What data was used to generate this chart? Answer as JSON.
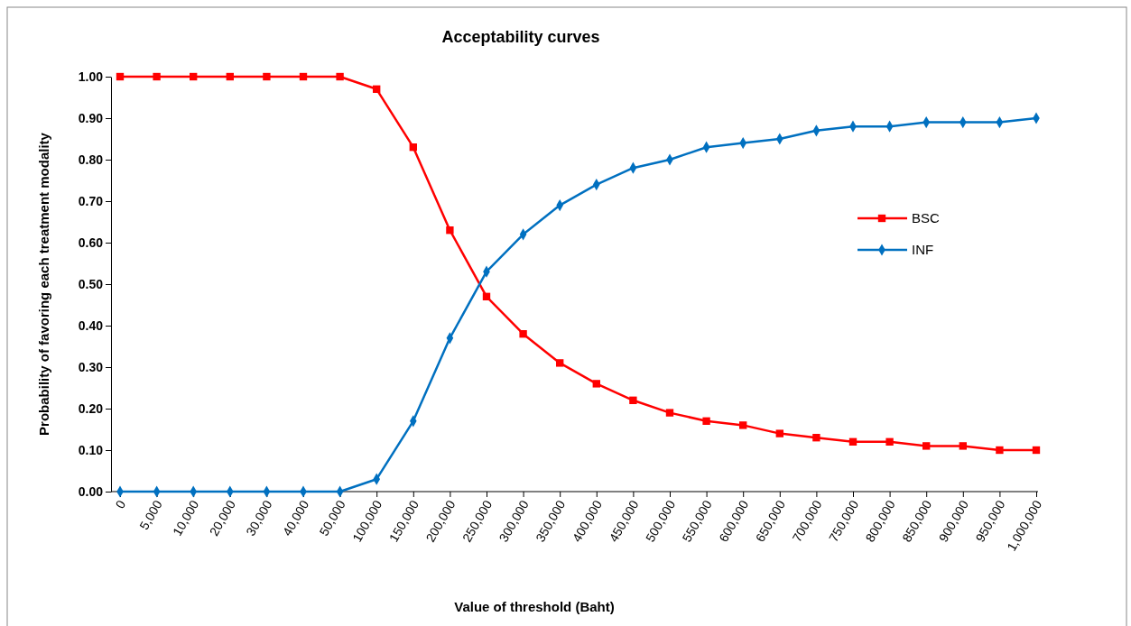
{
  "chart_data": {
    "type": "line",
    "title": "Acceptability curves",
    "xlabel": "Value of  threshold (Baht)",
    "ylabel": "Probability of favoring each treatment modality",
    "categories": [
      "0",
      "5,000",
      "10,000",
      "20,000",
      "30,000",
      "40,000",
      "50,000",
      "100,000",
      "150,000",
      "200,000",
      "250,000",
      "300,000",
      "350,000",
      "400,000",
      "450,000",
      "500,000",
      "550,000",
      "600,000",
      "650,000",
      "700,000",
      "750,000",
      "800,000",
      "850,000",
      "900,000",
      "950,000",
      "1,000,000"
    ],
    "series": [
      {
        "name": "BSC",
        "color": "#ff0000",
        "marker": "square",
        "values": [
          1,
          1,
          1,
          1,
          1,
          1,
          1,
          0.97,
          0.83,
          0.63,
          0.47,
          0.38,
          0.31,
          0.26,
          0.22,
          0.19,
          0.17,
          0.16,
          0.14,
          0.13,
          0.12,
          0.12,
          0.11,
          0.11,
          0.1,
          0.1
        ]
      },
      {
        "name": "INF",
        "color": "#0070c0",
        "marker": "diamond",
        "values": [
          0,
          0,
          0,
          0,
          0,
          0,
          0,
          0.03,
          0.17,
          0.37,
          0.53,
          0.62,
          0.69,
          0.74,
          0.78,
          0.8,
          0.83,
          0.84,
          0.85,
          0.87,
          0.88,
          0.88,
          0.89,
          0.89,
          0.89,
          0.9
        ]
      }
    ],
    "ylim": [
      0,
      1
    ],
    "yticks": [
      {
        "value": 0,
        "label": "0.00"
      },
      {
        "value": 0.1,
        "label": "0.10"
      },
      {
        "value": 0.2,
        "label": "0.20"
      },
      {
        "value": 0.3,
        "label": "0.30"
      },
      {
        "value": 0.4,
        "label": "0.40"
      },
      {
        "value": 0.5,
        "label": "0.50"
      },
      {
        "value": 0.6,
        "label": "0.60"
      },
      {
        "value": 0.7,
        "label": "0.70"
      },
      {
        "value": 0.8,
        "label": "0.80"
      },
      {
        "value": 0.9,
        "label": "0.90"
      },
      {
        "value": 1,
        "label": "1.00"
      }
    ],
    "grid": false,
    "legend": "right",
    "line_style": "solid"
  }
}
